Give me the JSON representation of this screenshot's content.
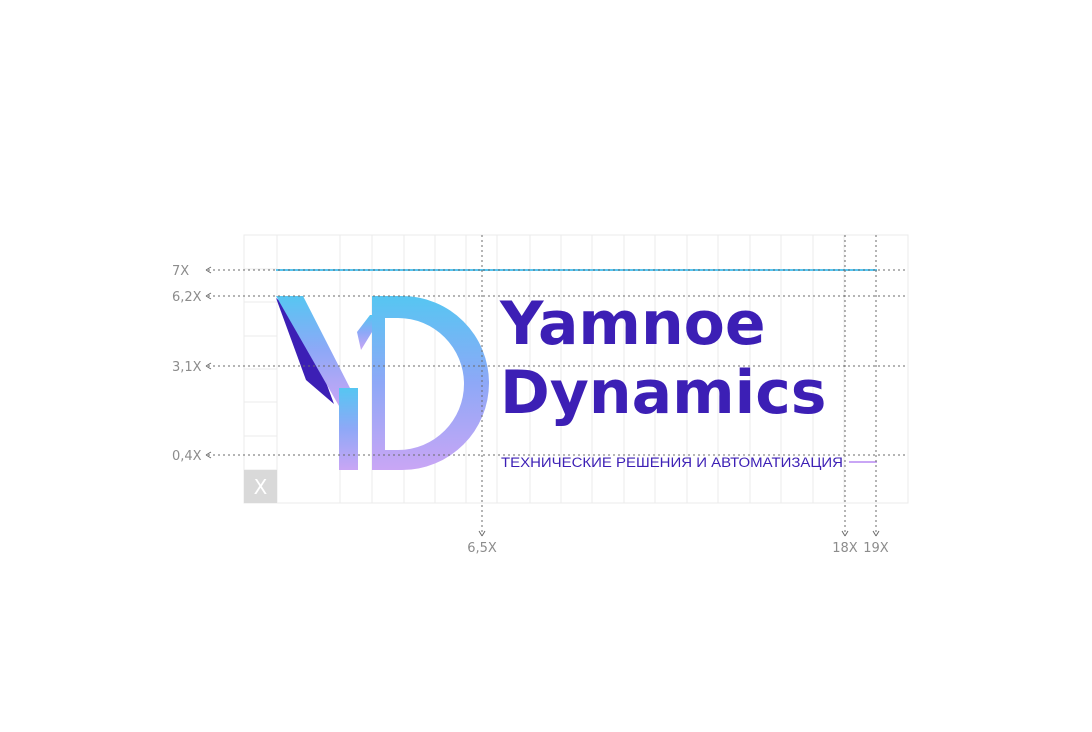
{
  "brand": {
    "name_line1": "Yamnoe",
    "name_line2": "Dynamics",
    "tagline": "ТЕХНИЧЕСКИЕ РЕШЕНИЯ И АВТОМАТИЗАЦИЯ",
    "monogram": "YD"
  },
  "colors": {
    "wordmark": "#3c1fb5",
    "gradient_light": "#56c6f2",
    "gradient_mid": "#8ea8f7",
    "gradient_end": "#c9a6f5",
    "guide": "#6b6b6b",
    "grid": "#ebebeb",
    "unit_box": "#d9d9d9"
  },
  "unit": {
    "label": "X"
  },
  "vertical_guides": [
    {
      "label": "7X"
    },
    {
      "label": "6,2X"
    },
    {
      "label": "3,1X"
    },
    {
      "label": "0,4X"
    }
  ],
  "horizontal_guides": [
    {
      "label": "6,5X"
    },
    {
      "label": "18X"
    },
    {
      "label": "19X"
    }
  ]
}
